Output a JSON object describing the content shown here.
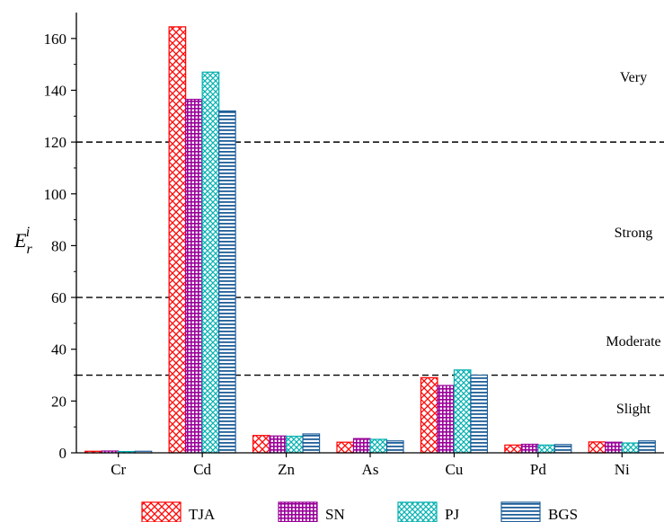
{
  "chart_data": {
    "type": "bar",
    "title": "",
    "xlabel": "",
    "ylabel": "E",
    "ylabel_superscript": "i",
    "ylabel_subscript": "r",
    "ylim": [
      0,
      170
    ],
    "yticks": [
      "0",
      "20",
      "40",
      "60",
      "80",
      "100",
      "120",
      "140",
      "160"
    ],
    "categories": [
      "Cr",
      "Cd",
      "Zn",
      "As",
      "Cu",
      "Pd",
      "Ni"
    ],
    "series": [
      {
        "name": "TJA",
        "color": "#ff0000",
        "pattern": "crosshatch",
        "values": [
          0.6,
          164.5,
          6.7,
          4.1,
          29.0,
          3.0,
          4.2
        ]
      },
      {
        "name": "SN",
        "color": "#990099",
        "pattern": "grid",
        "values": [
          0.7,
          136.5,
          6.5,
          5.5,
          26.0,
          3.3,
          4.1
        ]
      },
      {
        "name": "PJ",
        "color": "#00b0b0",
        "pattern": "crosshatch",
        "values": [
          0.5,
          147.0,
          6.4,
          5.2,
          32.0,
          3.0,
          3.8
        ]
      },
      {
        "name": "BGS",
        "color": "#1f5f99",
        "pattern": "horizontal",
        "values": [
          0.6,
          132.0,
          7.3,
          4.6,
          30.0,
          3.2,
          4.6
        ]
      }
    ],
    "thresholds": [
      30,
      60,
      120
    ],
    "zones": [
      {
        "label": "Very",
        "y": 145
      },
      {
        "label": "Strong",
        "y": 85
      },
      {
        "label": "Moderate",
        "y": 43
      },
      {
        "label": "Slight",
        "y": 17
      }
    ],
    "grid": false,
    "legend_position": "bottom"
  }
}
